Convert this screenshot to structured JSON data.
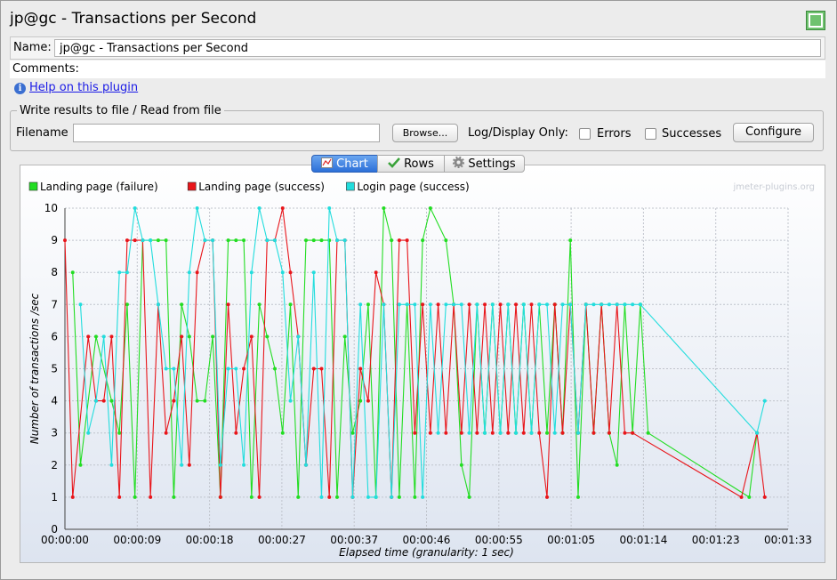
{
  "window": {
    "title": "jp@gc - Transactions per Second",
    "expand_icon": "expand-icon"
  },
  "form": {
    "name_label": "Name:",
    "name_value": "jp@gc - Transactions per Second",
    "comments_label": "Comments:",
    "help_icon": "info-icon",
    "help_link": "Help on this plugin"
  },
  "file_group": {
    "title": "Write results to file / Read from file",
    "filename_label": "Filename",
    "filename_value": "",
    "browse_label": "Browse...",
    "log_display_label": "Log/Display Only:",
    "errors_label": "Errors",
    "errors_checked": false,
    "successes_label": "Successes",
    "successes_checked": false,
    "configure_label": "Configure"
  },
  "tabs": [
    {
      "label": "Chart",
      "icon": "chart-icon",
      "selected": true
    },
    {
      "label": "Rows",
      "icon": "checkmark-icon",
      "selected": false
    },
    {
      "label": "Settings",
      "icon": "gear-icon",
      "selected": false
    }
  ],
  "chart_data": {
    "type": "line",
    "watermark": "jmeter-plugins.org",
    "xlabel": "Elapsed time (granularity: 1 sec)",
    "ylabel": "Number of transactions /sec",
    "xlim": [
      0,
      93
    ],
    "ylim": [
      0,
      10
    ],
    "x_ticks": [
      0,
      9.3,
      18.6,
      27.9,
      37.2,
      46.5,
      55.8,
      65.1,
      74.4,
      83.7,
      93
    ],
    "x_tick_labels": [
      "00:00:00",
      "00:00:09",
      "00:00:18",
      "00:00:27",
      "00:00:37",
      "00:00:46",
      "00:00:55",
      "00:01:05",
      "00:01:14",
      "00:01:23",
      "00:01:33"
    ],
    "y_ticks": [
      0,
      1,
      2,
      3,
      4,
      5,
      6,
      7,
      8,
      9,
      10
    ],
    "grid": true,
    "legend_position": "top-left",
    "series": [
      {
        "name": "Landing page (failure)",
        "color": "#22dd22",
        "points": [
          [
            1,
            8
          ],
          [
            2,
            2
          ],
          [
            4,
            6
          ],
          [
            6,
            4
          ],
          [
            7,
            3
          ],
          [
            8,
            7
          ],
          [
            9,
            1
          ],
          [
            10,
            9
          ],
          [
            11,
            9
          ],
          [
            12,
            9
          ],
          [
            13,
            9
          ],
          [
            14,
            1
          ],
          [
            15,
            7
          ],
          [
            16,
            6
          ],
          [
            17,
            4
          ],
          [
            18,
            4
          ],
          [
            19,
            6
          ],
          [
            20,
            1
          ],
          [
            21,
            9
          ],
          [
            22,
            9
          ],
          [
            23,
            9
          ],
          [
            24,
            1
          ],
          [
            25,
            7
          ],
          [
            26,
            6
          ],
          [
            27,
            5
          ],
          [
            28,
            3
          ],
          [
            29,
            7
          ],
          [
            30,
            1
          ],
          [
            31,
            9
          ],
          [
            32,
            9
          ],
          [
            33,
            9
          ],
          [
            34,
            9
          ],
          [
            35,
            1
          ],
          [
            36,
            6
          ],
          [
            37,
            3
          ],
          [
            38,
            4
          ],
          [
            39,
            7
          ],
          [
            40,
            1
          ],
          [
            41,
            10
          ],
          [
            42,
            9
          ],
          [
            43,
            1
          ],
          [
            44,
            7
          ],
          [
            45,
            1
          ],
          [
            46,
            9
          ],
          [
            47,
            10
          ],
          [
            49,
            9
          ],
          [
            50,
            7
          ],
          [
            51,
            2
          ],
          [
            52,
            1
          ],
          [
            53,
            7
          ],
          [
            54,
            3
          ],
          [
            55,
            7
          ],
          [
            56,
            3
          ],
          [
            57,
            7
          ],
          [
            58,
            3
          ],
          [
            59,
            7
          ],
          [
            60,
            3
          ],
          [
            61,
            7
          ],
          [
            62,
            3
          ],
          [
            63,
            7
          ],
          [
            64,
            3
          ],
          [
            65,
            9
          ],
          [
            66,
            1
          ],
          [
            67,
            7
          ],
          [
            68,
            3
          ],
          [
            69,
            7
          ],
          [
            70,
            3
          ],
          [
            71,
            2
          ],
          [
            72,
            7
          ],
          [
            73,
            3
          ],
          [
            74,
            7
          ],
          [
            75,
            3
          ],
          [
            88,
            1
          ],
          [
            89,
            3
          ]
        ]
      },
      {
        "name": "Landing page (success)",
        "color": "#e8151a",
        "points": [
          [
            0,
            9
          ],
          [
            1,
            1
          ],
          [
            3,
            6
          ],
          [
            4,
            4
          ],
          [
            5,
            4
          ],
          [
            6,
            6
          ],
          [
            7,
            1
          ],
          [
            8,
            9
          ],
          [
            9,
            9
          ],
          [
            10,
            9
          ],
          [
            11,
            1
          ],
          [
            12,
            7
          ],
          [
            13,
            3
          ],
          [
            14,
            4
          ],
          [
            15,
            6
          ],
          [
            16,
            2
          ],
          [
            17,
            8
          ],
          [
            18,
            9
          ],
          [
            19,
            9
          ],
          [
            20,
            1
          ],
          [
            21,
            7
          ],
          [
            22,
            3
          ],
          [
            23,
            5
          ],
          [
            24,
            6
          ],
          [
            25,
            1
          ],
          [
            26,
            9
          ],
          [
            27,
            9
          ],
          [
            28,
            10
          ],
          [
            29,
            8
          ],
          [
            30,
            6
          ],
          [
            31,
            2
          ],
          [
            32,
            5
          ],
          [
            33,
            5
          ],
          [
            34,
            1
          ],
          [
            35,
            9
          ],
          [
            36,
            9
          ],
          [
            37,
            1
          ],
          [
            38,
            5
          ],
          [
            39,
            4
          ],
          [
            40,
            8
          ],
          [
            41,
            7
          ],
          [
            42,
            1
          ],
          [
            43,
            9
          ],
          [
            44,
            9
          ],
          [
            45,
            3
          ],
          [
            46,
            7
          ],
          [
            47,
            3
          ],
          [
            48,
            7
          ],
          [
            49,
            3
          ],
          [
            50,
            7
          ],
          [
            51,
            3
          ],
          [
            52,
            7
          ],
          [
            53,
            3
          ],
          [
            54,
            7
          ],
          [
            55,
            3
          ],
          [
            56,
            7
          ],
          [
            57,
            3
          ],
          [
            58,
            7
          ],
          [
            59,
            3
          ],
          [
            60,
            7
          ],
          [
            61,
            3
          ],
          [
            62,
            1
          ],
          [
            63,
            7
          ],
          [
            64,
            3
          ],
          [
            65,
            7
          ],
          [
            66,
            3
          ],
          [
            67,
            7
          ],
          [
            68,
            3
          ],
          [
            69,
            7
          ],
          [
            70,
            3
          ],
          [
            71,
            7
          ],
          [
            72,
            3
          ],
          [
            73,
            3
          ],
          [
            87,
            1
          ],
          [
            89,
            3
          ],
          [
            90,
            1
          ]
        ]
      },
      {
        "name": "Login page (success)",
        "color": "#22dddd",
        "points": [
          [
            2,
            7
          ],
          [
            3,
            3
          ],
          [
            4,
            4
          ],
          [
            5,
            6
          ],
          [
            6,
            2
          ],
          [
            7,
            8
          ],
          [
            8,
            8
          ],
          [
            9,
            10
          ],
          [
            10,
            9
          ],
          [
            11,
            9
          ],
          [
            12,
            7
          ],
          [
            13,
            5
          ],
          [
            14,
            5
          ],
          [
            15,
            2
          ],
          [
            16,
            8
          ],
          [
            17,
            10
          ],
          [
            18,
            9
          ],
          [
            19,
            9
          ],
          [
            20,
            2
          ],
          [
            21,
            5
          ],
          [
            22,
            5
          ],
          [
            23,
            2
          ],
          [
            24,
            8
          ],
          [
            25,
            10
          ],
          [
            26,
            9
          ],
          [
            27,
            9
          ],
          [
            28,
            8
          ],
          [
            29,
            4
          ],
          [
            30,
            6
          ],
          [
            31,
            2
          ],
          [
            32,
            8
          ],
          [
            33,
            1
          ],
          [
            34,
            10
          ],
          [
            35,
            9
          ],
          [
            36,
            9
          ],
          [
            37,
            1
          ],
          [
            38,
            7
          ],
          [
            39,
            1
          ],
          [
            40,
            1
          ],
          [
            41,
            7
          ],
          [
            42,
            1
          ],
          [
            43,
            7
          ],
          [
            44,
            7
          ],
          [
            45,
            7
          ],
          [
            46,
            1
          ],
          [
            47,
            7
          ],
          [
            48,
            3
          ],
          [
            49,
            7
          ],
          [
            50,
            7
          ],
          [
            51,
            7
          ],
          [
            52,
            3
          ],
          [
            53,
            7
          ],
          [
            54,
            3
          ],
          [
            55,
            7
          ],
          [
            56,
            3
          ],
          [
            57,
            7
          ],
          [
            58,
            3
          ],
          [
            59,
            7
          ],
          [
            60,
            3
          ],
          [
            61,
            7
          ],
          [
            62,
            7
          ],
          [
            63,
            3
          ],
          [
            64,
            7
          ],
          [
            65,
            7
          ],
          [
            66,
            3
          ],
          [
            67,
            7
          ],
          [
            68,
            7
          ],
          [
            69,
            7
          ],
          [
            70,
            7
          ],
          [
            71,
            7
          ],
          [
            72,
            7
          ],
          [
            73,
            7
          ],
          [
            74,
            7
          ],
          [
            89,
            3
          ],
          [
            90,
            4
          ]
        ]
      }
    ]
  }
}
